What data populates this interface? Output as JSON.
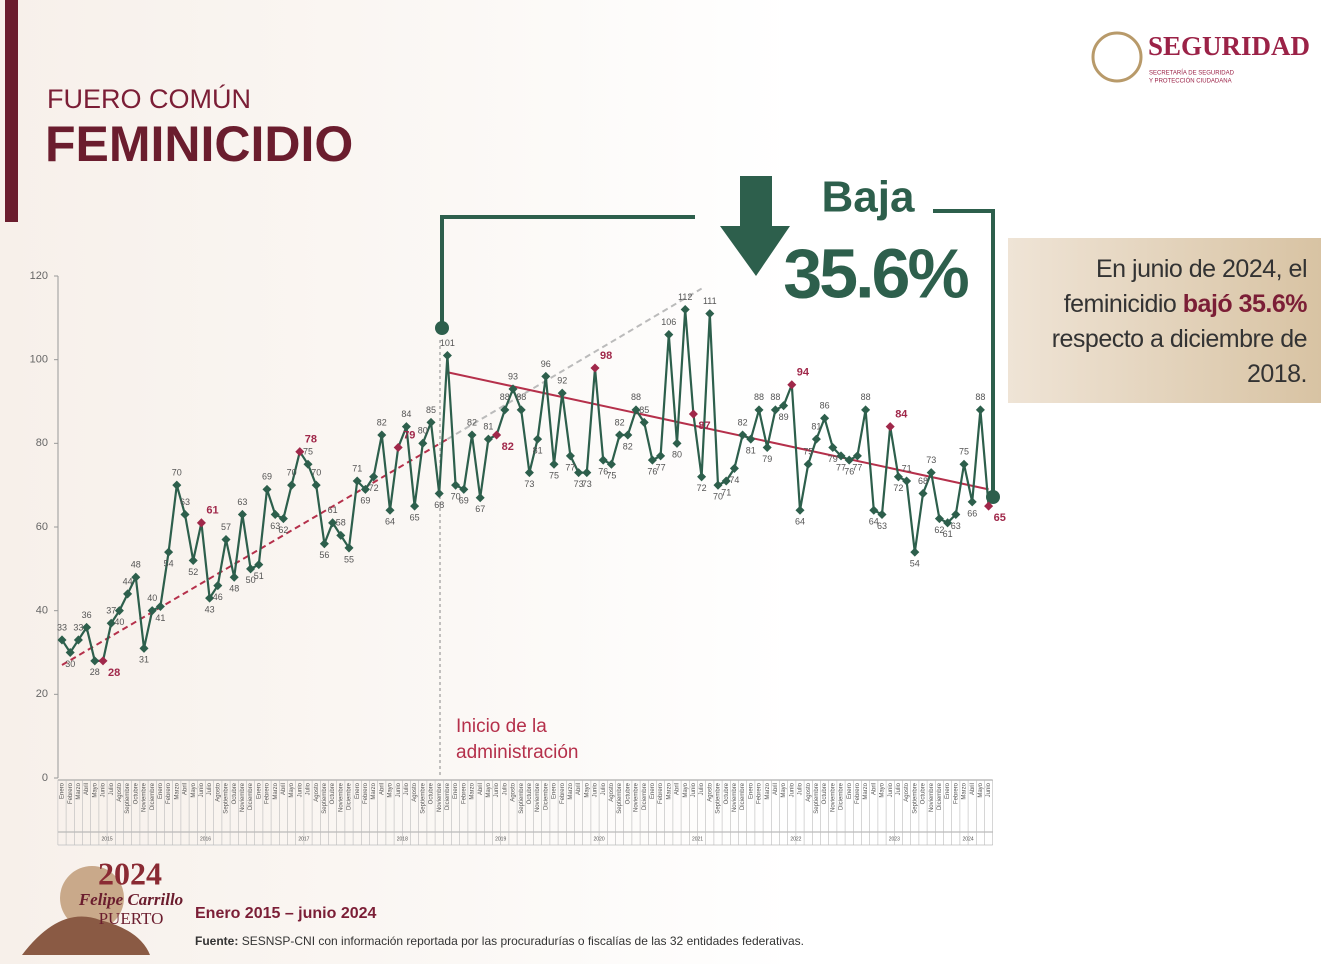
{
  "header": {
    "subtitle": "FUERO COMÚN",
    "title": "FEMINICIDIO",
    "brand": "SEGURIDAD",
    "brand_sub_1": "SECRETARÍA DE SEGURIDAD",
    "brand_sub_2": "Y PROTECCIÓN CIUDADANA"
  },
  "banner": {
    "label": "Baja",
    "value": "35.6%"
  },
  "callout": {
    "part1": "En junio de 2024, el feminicidio ",
    "bold": "bajó 35.6%",
    "part2": " respecto a diciembre de 2018."
  },
  "chart_data": {
    "type": "line",
    "categories": [
      "Enero",
      "Febrero",
      "Marzo",
      "Abril",
      "Mayo",
      "Junio",
      "Julio",
      "Agosto",
      "Septiembre",
      "Octubre",
      "Noviembre",
      "Diciembre",
      "Enero",
      "Febrero",
      "Marzo",
      "Abril",
      "Mayo",
      "Junio",
      "Julio",
      "Agosto",
      "Septiembre",
      "Octubre",
      "Noviembre",
      "Diciembre",
      "Enero",
      "Febrero",
      "Marzo",
      "Abril",
      "Mayo",
      "Junio",
      "Julio",
      "Agosto",
      "Septiembre",
      "Octubre",
      "Noviembre",
      "Diciembre",
      "Enero",
      "Febrero",
      "Marzo",
      "Abril",
      "Mayo",
      "Junio",
      "Julio",
      "Agosto",
      "Septiembre",
      "Octubre",
      "Noviembre",
      "Diciembre",
      "Enero",
      "Febrero",
      "Marzo",
      "Abril",
      "Mayo",
      "Junio",
      "Julio",
      "Agosto",
      "Septiembre",
      "Octubre",
      "Noviembre",
      "Diciembre",
      "Enero",
      "Febrero",
      "Marzo",
      "Abril",
      "Mayo",
      "Junio",
      "Julio",
      "Agosto",
      "Septiembre",
      "Octubre",
      "Noviembre",
      "Diciembre",
      "Enero",
      "Febrero",
      "Marzo",
      "Abril",
      "Mayo",
      "Junio",
      "Julio",
      "Agosto",
      "Septiembre",
      "Octubre",
      "Noviembre",
      "Diciembre",
      "Enero",
      "Febrero",
      "Marzo",
      "Abril",
      "Mayo",
      "Junio",
      "Julio",
      "Agosto",
      "Septiembre",
      "Octubre",
      "Noviembre",
      "Diciembre",
      "Enero",
      "Febrero",
      "Marzo",
      "Abril",
      "Mayo",
      "Junio",
      "Julio",
      "Agosto",
      "Septiembre",
      "Octubre",
      "Noviembre",
      "Diciembre",
      "Enero",
      "Febrero",
      "Marzo",
      "Abril",
      "Mayo",
      "Junio"
    ],
    "years": [
      "2015",
      "2016",
      "2017",
      "2018",
      "2019",
      "2020",
      "2021",
      "2022",
      "2023",
      "2024"
    ],
    "series": [
      {
        "color": "#2d5f4c",
        "highlight_color": "#a0284a",
        "values": [
          33,
          30,
          33,
          36,
          28,
          28,
          37,
          40,
          44,
          48,
          31,
          40,
          41,
          54,
          70,
          63,
          52,
          61,
          43,
          46,
          57,
          48,
          63,
          50,
          51,
          69,
          63,
          62,
          70,
          78,
          75,
          70,
          56,
          61,
          58,
          55,
          71,
          69,
          72,
          82,
          64,
          79,
          84,
          65,
          80,
          85,
          68,
          101,
          70,
          69,
          82,
          67,
          81,
          82,
          88,
          93,
          88,
          73,
          81,
          96,
          75,
          92,
          77,
          73,
          73,
          98,
          76,
          75,
          82,
          82,
          88,
          85,
          76,
          77,
          106,
          80,
          112,
          87,
          72,
          111,
          70,
          71,
          74,
          82,
          81,
          88,
          79,
          88,
          89,
          94,
          64,
          75,
          81,
          86,
          79,
          77,
          76,
          77,
          88,
          64,
          63,
          84,
          72,
          71,
          54,
          68,
          73,
          62,
          61,
          63,
          75,
          66,
          88,
          65
        ]
      }
    ],
    "trend_lines": [
      {
        "x": [
          0,
          47
        ],
        "values": [
          27,
          81
        ],
        "color": "#b5304b",
        "dashed": true
      },
      {
        "x": [
          47,
          78
        ],
        "values": [
          81,
          117
        ],
        "color": "#bbbbbb",
        "dashed": true
      },
      {
        "x": [
          47,
          113
        ],
        "values": [
          97,
          69
        ],
        "color": "#b5304b",
        "dashed": false
      }
    ],
    "ylim": [
      0,
      120
    ],
    "yticks": [
      0,
      20,
      40,
      60,
      80,
      100,
      120
    ],
    "annotation": "Inicio de la administración",
    "period": "Enero 2015 – junio 2024"
  },
  "footer": {
    "source_label": "Fuente:",
    "source": "SESNSP-CNI con información reportada por las procuradurías o fiscalías de las 32 entidades federativas.",
    "logo_year": "2024",
    "logo_name_1": "Felipe Carrillo",
    "logo_name_2": "PUERTO"
  }
}
